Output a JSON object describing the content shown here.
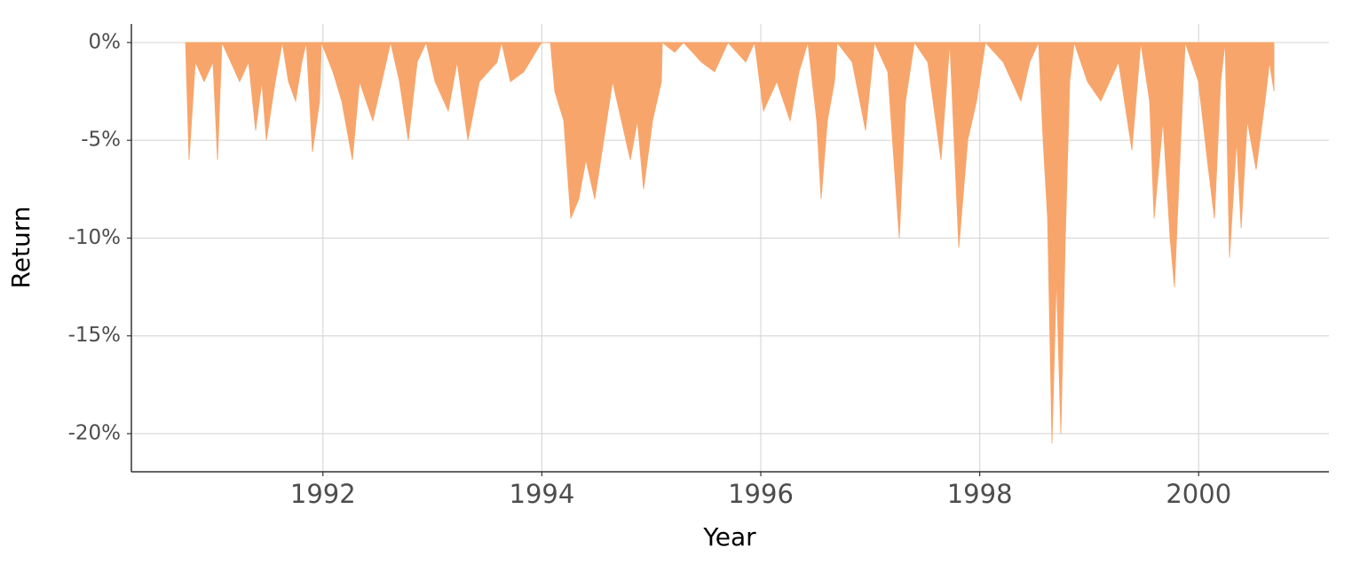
{
  "chart_data": {
    "type": "area",
    "x_label": "Year",
    "y_label": "Return",
    "color": "#f8a56b",
    "grid": true,
    "xlim": [
      1990.25,
      2001.19
    ],
    "xticks": [
      1992,
      1994,
      1996,
      1998,
      2000
    ],
    "ylim": [
      -21.95,
      0.95
    ],
    "yticks": [
      {
        "value": 0,
        "label": "0%"
      },
      {
        "value": -5,
        "label": "-5%"
      },
      {
        "value": -10,
        "label": "-10%"
      },
      {
        "value": -15,
        "label": "-15%"
      },
      {
        "value": -20,
        "label": "-20%"
      }
    ],
    "x": [
      1990.745,
      1990.777,
      1990.834,
      1990.915,
      1990.996,
      1991.037,
      1991.077,
      1991.158,
      1991.239,
      1991.321,
      1991.385,
      1991.442,
      1991.483,
      1991.564,
      1991.629,
      1991.685,
      1991.75,
      1991.807,
      1991.848,
      1991.904,
      1991.969,
      1991.986,
      1992.091,
      1992.172,
      1992.269,
      1992.334,
      1992.456,
      1992.578,
      1992.618,
      1992.699,
      1992.78,
      1992.861,
      1992.943,
      1993.024,
      1993.145,
      1993.226,
      1993.324,
      1993.429,
      1993.591,
      1993.632,
      1993.713,
      1993.835,
      1993.997,
      1994.078,
      1994.118,
      1994.2,
      1994.264,
      1994.337,
      1994.402,
      1994.483,
      1994.565,
      1994.646,
      1994.727,
      1994.808,
      1994.873,
      1994.929,
      1995.011,
      1995.092,
      1995.1,
      1995.213,
      1995.294,
      1995.457,
      1995.578,
      1995.7,
      1995.862,
      1995.943,
      1996.024,
      1996.146,
      1996.268,
      1996.349,
      1996.43,
      1996.511,
      1996.551,
      1996.608,
      1996.673,
      1996.697,
      1996.835,
      1996.957,
      1997.038,
      1997.16,
      1997.265,
      1997.322,
      1997.403,
      1997.525,
      1997.646,
      1997.727,
      1997.809,
      1997.89,
      1997.971,
      1998.052,
      1998.214,
      1998.376,
      1998.457,
      1998.538,
      1998.579,
      1998.62,
      1998.66,
      1998.701,
      1998.741,
      1998.782,
      1998.822,
      1998.863,
      1998.984,
      1999.106,
      1999.268,
      1999.39,
      1999.471,
      1999.552,
      1999.593,
      1999.674,
      1999.739,
      1999.779,
      1999.836,
      1999.877,
      1999.998,
      2000.079,
      2000.144,
      2000.201,
      2000.242,
      2000.282,
      2000.347,
      2000.388,
      2000.444,
      2000.525,
      2000.606,
      2000.647,
      2000.688
    ],
    "values": [
      0,
      -6,
      -1,
      -2,
      -1,
      -6,
      0,
      -1,
      -2,
      -1,
      -4.5,
      -2,
      -5,
      -2,
      0,
      -2,
      -3,
      -1,
      0,
      -5.6,
      -3,
      0,
      -1.5,
      -3,
      -6,
      -2,
      -4,
      -1,
      0,
      -2,
      -5,
      -1,
      0,
      -2,
      -3.5,
      -1,
      -5,
      -2,
      -1,
      0,
      -2,
      -1.5,
      0,
      0,
      -2.5,
      -4,
      -9,
      -8,
      -6,
      -8,
      -5,
      -2,
      -4,
      -6,
      -4,
      -7.5,
      -4,
      -2,
      0,
      -0.5,
      0,
      -1,
      -1.5,
      0,
      -1,
      0,
      -3.5,
      -2,
      -4,
      -1.5,
      0,
      -4,
      -8,
      -4,
      -2,
      0,
      -1,
      -4.5,
      0,
      -1.5,
      -10,
      -3,
      0,
      -1,
      -6,
      0,
      -10.5,
      -5,
      -3,
      0,
      -1,
      -3,
      -1,
      0,
      -5,
      -9,
      -20.5,
      -12,
      -20,
      -10,
      -2,
      0,
      -2,
      -3,
      -1,
      -5.5,
      0,
      -3,
      -9,
      -4,
      -10,
      -12.5,
      -5,
      0,
      -2,
      -6,
      -9,
      -2,
      0,
      -11,
      -5,
      -9.5,
      -4,
      -6.5,
      -3,
      -1,
      -2.5
    ]
  }
}
